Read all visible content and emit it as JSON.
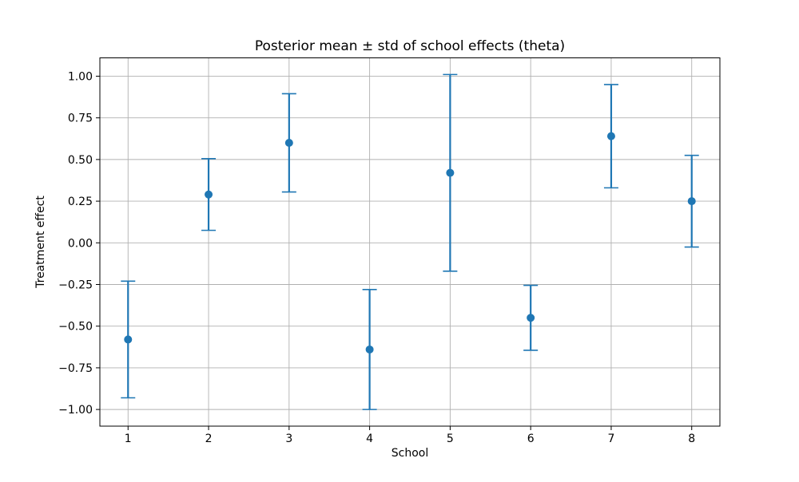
{
  "figure": {
    "background": "#ffffff"
  },
  "chart_data": {
    "type": "scatter",
    "subtype": "errorbar",
    "title": "Posterior mean ± std of school effects (theta)",
    "xlabel": "School",
    "ylabel": "Treatment effect",
    "x": [
      1,
      2,
      3,
      4,
      5,
      6,
      7,
      8
    ],
    "series": [
      {
        "name": "posterior_mean",
        "values": [
          -0.58,
          0.29,
          0.6,
          -0.64,
          0.42,
          -0.45,
          0.64,
          0.25
        ]
      },
      {
        "name": "posterior_std",
        "values": [
          0.35,
          0.215,
          0.295,
          0.36,
          0.59,
          0.195,
          0.31,
          0.275
        ]
      }
    ],
    "xtick_labels": [
      "1",
      "2",
      "3",
      "4",
      "5",
      "6",
      "7",
      "8"
    ],
    "yticks": [
      1.0,
      0.75,
      0.5,
      0.25,
      0.0,
      -0.25,
      -0.5,
      -0.75,
      -1.0
    ],
    "ytick_labels": [
      "1.00",
      "0.75",
      "0.50",
      "0.25",
      "0.00",
      "−0.25",
      "−0.50",
      "−0.75",
      "−1.00"
    ],
    "xlim": [
      0.65,
      8.35
    ],
    "ylim": [
      -1.1,
      1.11
    ],
    "grid": true,
    "legend_position": "none",
    "marker_color": "#1f77b4",
    "grid_color": "#b0b0b0",
    "spine_color": "#000000",
    "text_color": "#000000"
  }
}
